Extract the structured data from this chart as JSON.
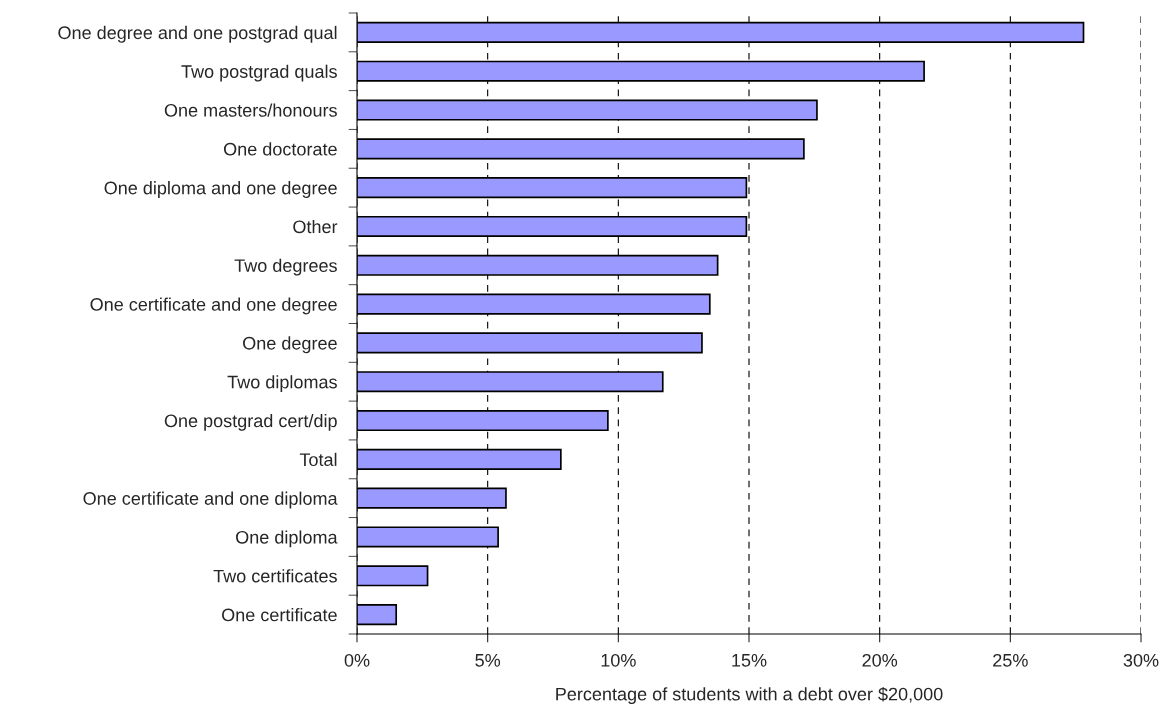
{
  "chart_data": {
    "type": "bar",
    "orientation": "horizontal",
    "xlabel": "Percentage of students with a debt over $20,000",
    "categories": [
      "One degree and one postgrad qual",
      "Two postgrad quals",
      "One masters/honours",
      "One doctorate",
      "One diploma and one degree",
      "Other",
      "Two degrees",
      "One certificate and one degree",
      "One degree",
      "Two diplomas",
      "One postgrad cert/dip",
      "Total",
      "One certificate and one diploma",
      "One diploma",
      "Two certificates",
      "One certificate"
    ],
    "values": [
      27.8,
      21.7,
      17.6,
      17.1,
      14.9,
      14.9,
      13.8,
      13.5,
      13.2,
      11.7,
      9.6,
      7.8,
      5.7,
      5.4,
      2.7,
      1.5
    ],
    "color": "#9999ff",
    "xlim": [
      0,
      30
    ],
    "xticks": [
      {
        "value": 0,
        "label": "0%"
      },
      {
        "value": 5,
        "label": "5%"
      },
      {
        "value": 10,
        "label": "10%"
      },
      {
        "value": 15,
        "label": "15%"
      },
      {
        "value": 20,
        "label": "20%"
      },
      {
        "value": 25,
        "label": "25%"
      },
      {
        "value": 30,
        "label": "30%"
      }
    ],
    "grid": "x"
  }
}
